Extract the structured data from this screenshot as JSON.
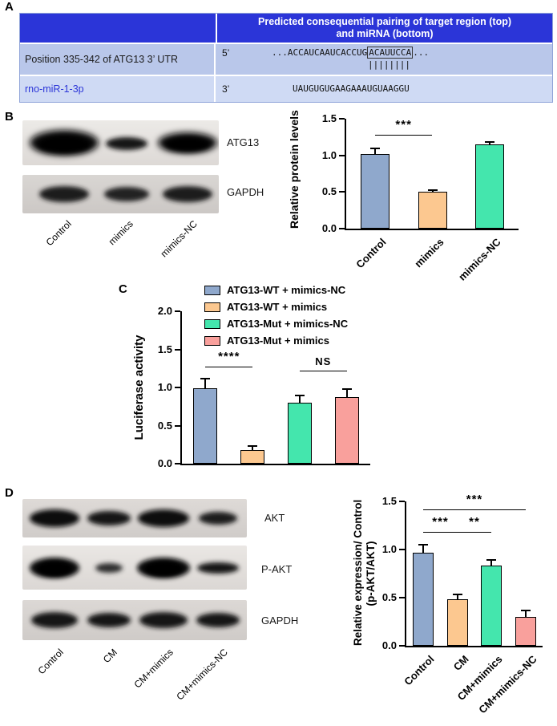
{
  "labels": {
    "a": "A",
    "b": "B",
    "c": "C",
    "d": "D"
  },
  "panel_a": {
    "header": "Predicted consequential pairing of target region (top) and miRNA (bottom)",
    "row1_name": "Position 335-342 of ATG13 3’ UTR",
    "row1_end": "5’",
    "row1_seq_pre": "...ACCAUCAAUCACCUG",
    "row1_seq_box": "ACAUUCCA",
    "row1_seq_post": "...",
    "pairing_bars": "||||||||",
    "row2_name": "rno-miR-1-3p",
    "row2_end": "3’",
    "row2_seq": "UAUGUGUGAAGAAAUGUAAGGU"
  },
  "panel_b": {
    "bands": [
      "ATG13",
      "GAPDH"
    ],
    "lanes": [
      "Control",
      "mimics",
      "mimics-NC"
    ]
  },
  "panel_d": {
    "bands": [
      "AKT",
      "P-AKT",
      "GAPDH"
    ],
    "lanes": [
      "Control",
      "CM",
      "CM+mimics",
      "CM+mimics-NC"
    ]
  },
  "chart_data": {
    "b": {
      "type": "bar",
      "ylabel": "Relative protein levels",
      "ylim": [
        0,
        1.5
      ],
      "yticks": [
        0,
        0.5,
        1,
        1.5
      ],
      "categories": [
        "Control",
        "mimics",
        "mimics-NC"
      ],
      "values": [
        1.02,
        0.5,
        1.15
      ],
      "errors": [
        0.07,
        0.03,
        0.03
      ],
      "colors": [
        "#8fa8cc",
        "#fcc890",
        "#44e6ad"
      ],
      "significance": [
        {
          "from": 0,
          "to": 1,
          "y": 1.28,
          "label": "***"
        }
      ],
      "show_xlabels": true,
      "grid": false
    },
    "c": {
      "type": "bar",
      "ylabel": "Luciferase activity",
      "ylim": [
        0,
        2
      ],
      "yticks": [
        0,
        0.5,
        1,
        1.5,
        2
      ],
      "categories": [
        "ATG13-WT + mimics-NC",
        "ATG13-WT + mimics",
        "ATG13-Mut + mimics-NC",
        "ATG13-Mut + mimics"
      ],
      "values": [
        0.99,
        0.18,
        0.8,
        0.87
      ],
      "errors": [
        0.13,
        0.05,
        0.09,
        0.11
      ],
      "colors": [
        "#8fa8cc",
        "#fcc890",
        "#44e6ad",
        "#f9a09c"
      ],
      "significance": [
        {
          "from": 0,
          "to": 1,
          "y": 1.27,
          "label": "****"
        },
        {
          "from": 2,
          "to": 3,
          "y": 1.22,
          "label": "NS"
        }
      ],
      "legend": [
        "ATG13-WT + mimics-NC",
        "ATG13-WT + mimics",
        "ATG13-Mut + mimics-NC",
        "ATG13-Mut + mimics"
      ],
      "legend_position": "top-right",
      "show_xlabels": false,
      "grid": false
    },
    "d": {
      "type": "bar",
      "ylabel": [
        "Relative expression/ Control",
        "(p-AKT/AKT)"
      ],
      "ylim": [
        0,
        1.5
      ],
      "yticks": [
        0,
        0.5,
        1,
        1.5
      ],
      "categories": [
        "Control",
        "CM",
        "CM+mimics",
        "CM+mimics-NC"
      ],
      "values": [
        0.97,
        0.48,
        0.83,
        0.3
      ],
      "errors": [
        0.08,
        0.05,
        0.06,
        0.07
      ],
      "colors": [
        "#8fa8cc",
        "#fcc890",
        "#44e6ad",
        "#f9a09c"
      ],
      "significance": [
        {
          "from": 0,
          "to": 1,
          "y": 1.18,
          "label": "***"
        },
        {
          "from": 1,
          "to": 2,
          "y": 1.18,
          "label": "**"
        },
        {
          "from": 0,
          "to": 3,
          "y": 1.42,
          "label": "***"
        }
      ],
      "show_xlabels": true,
      "grid": false
    }
  },
  "colors": {
    "table_header": "#2b35d8",
    "table_row1_bg": "#b9c7ea",
    "table_row2_bg": "#cfdaf4",
    "bar_blue": "#8fa8cc",
    "bar_orange": "#fcc890",
    "bar_green": "#44e6ad",
    "bar_pink": "#f9a09c"
  }
}
